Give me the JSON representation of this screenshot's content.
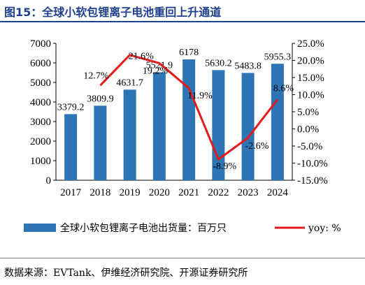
{
  "title": "图15：全球小软包锂离子电池重回上升通道",
  "source": "数据来源：EVTank、伊维经济研究院、开源证券研究所",
  "colors": {
    "bar": "#2e75b6",
    "line": "#e31a1c",
    "title": "#1f3f8f"
  },
  "chart_data": {
    "type": "bar+line",
    "categories": [
      "2017",
      "2018",
      "2019",
      "2020",
      "2021",
      "2022",
      "2023",
      "2024"
    ],
    "series": [
      {
        "name": "全球小软包锂离子电池出货量：百万只",
        "type": "bar",
        "axis": "left",
        "values": [
          3379.2,
          3809.9,
          4631.7,
          5521.9,
          6178,
          5630.2,
          5483.8,
          5955.3
        ],
        "labels": [
          "3379.2",
          "3809.9",
          "4631.7",
          "5521.9",
          "6178",
          "5630.2",
          "5483.8",
          "5955.3"
        ]
      },
      {
        "name": "yoy: %",
        "type": "line",
        "axis": "right",
        "x": [
          "2018",
          "2019",
          "2020",
          "2021",
          "2022",
          "2023",
          "2024"
        ],
        "values": [
          12.7,
          21.6,
          19.2,
          11.9,
          -8.9,
          -2.6,
          8.6
        ],
        "labels": [
          "12.7%",
          "21.6%",
          "19.2%",
          "11.9%",
          "-8.9%",
          "-2.6%",
          "8.6%"
        ]
      }
    ],
    "y_left": {
      "min": 0,
      "max": 7000,
      "ticks": [
        "0",
        "1000",
        "2000",
        "3000",
        "4000",
        "5000",
        "6000",
        "7000"
      ]
    },
    "y_right": {
      "min": -15,
      "max": 25,
      "ticks": [
        "-15.0%",
        "-10.0%",
        "-5.0%",
        "0.0%",
        "5.0%",
        "10.0%",
        "15.0%",
        "20.0%",
        "25.0%"
      ]
    },
    "legend": {
      "bar_label": "全球小软包锂离子电池出货量：百万只",
      "line_label": "yoy: %",
      "placement": "bottom"
    },
    "grid": false
  }
}
